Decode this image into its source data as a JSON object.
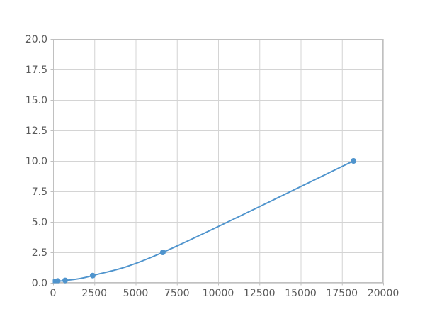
{
  "chart_data": {
    "type": "line",
    "title": "",
    "xlabel": "",
    "ylabel": "",
    "x": [
      100,
      280,
      730,
      2400,
      6650,
      18200
    ],
    "y": [
      0.1,
      0.15,
      0.2,
      0.6,
      2.5,
      10.0
    ],
    "x_ticks": [
      0,
      2500,
      5000,
      7500,
      10000,
      12500,
      15000,
      17500,
      20000
    ],
    "x_tick_labels": [
      "0",
      "2500",
      "5000",
      "7500",
      "10000",
      "12500",
      "15000",
      "17500",
      "20000"
    ],
    "y_ticks": [
      0,
      2.5,
      5,
      7.5,
      10,
      12.5,
      15,
      17.5,
      20
    ],
    "y_tick_labels": [
      "0.0",
      "2.5",
      "5.0",
      "7.5",
      "10.0",
      "12.5",
      "15.0",
      "17.5",
      "20.0"
    ],
    "xlim": [
      0,
      20000
    ],
    "ylim": [
      0,
      20
    ],
    "grid": true,
    "legend": false,
    "marker": "circle",
    "marker_radius": 4,
    "line_width": 2,
    "colors": {
      "line": "#4f94cd",
      "grid": "#d4d4d4",
      "spine": "#c0c0c0",
      "tick_text": "#595959",
      "background": "#ffffff"
    }
  }
}
